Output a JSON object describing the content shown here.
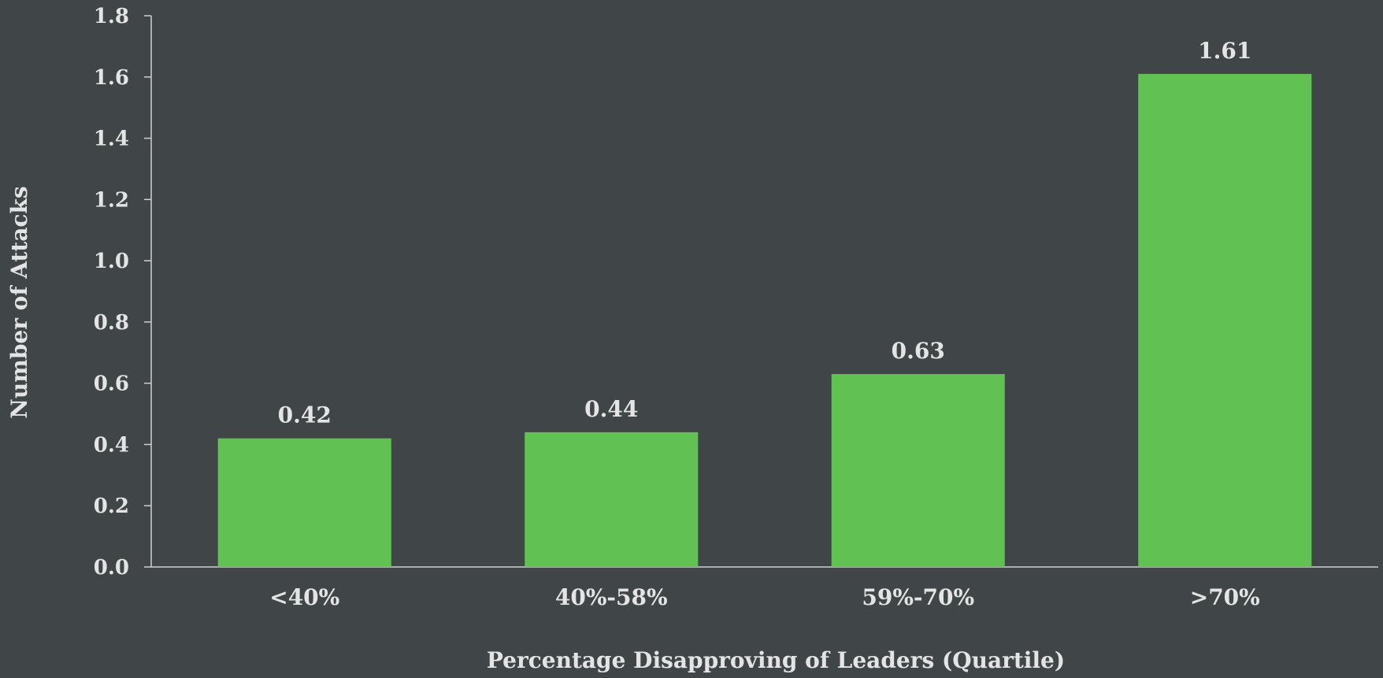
{
  "colors": {
    "background": "#404647",
    "bar": "#62c153",
    "text": "#e4e4e4",
    "axis": "#cfcfcf"
  },
  "chart_data": {
    "type": "bar",
    "title": "",
    "xlabel": "Percentage Disapproving of Leaders (Quartile)",
    "ylabel": "Number of Attacks",
    "categories": [
      "<40%",
      "40%-58%",
      "59%-70%",
      ">70%"
    ],
    "values": [
      0.42,
      0.44,
      0.63,
      1.61
    ],
    "value_labels": [
      "0.42",
      "0.44",
      "0.63",
      "1.61"
    ],
    "ylim": [
      0,
      1.8
    ],
    "yticks": [
      0.0,
      0.2,
      0.4,
      0.6,
      0.8,
      1.0,
      1.2,
      1.4,
      1.6,
      1.8
    ],
    "ytick_labels": [
      "0.0",
      "0.2",
      "0.4",
      "0.6",
      "0.8",
      "1.0",
      "1.2",
      "1.4",
      "1.6",
      "1.8"
    ],
    "grid": false,
    "legend": "none"
  }
}
